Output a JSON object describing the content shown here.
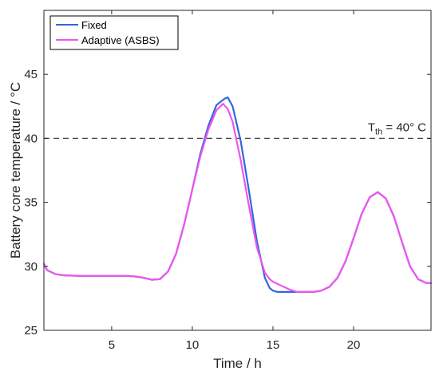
{
  "chart_data": {
    "type": "line",
    "title": "",
    "xlabel": "Time / h",
    "ylabel": "Battery core temperature / °C",
    "xlim": [
      0.8,
      24.8
    ],
    "ylim": [
      25,
      50
    ],
    "xticks": [
      5,
      10,
      15,
      20
    ],
    "yticks": [
      25,
      30,
      35,
      40,
      45
    ],
    "grid": false,
    "legend_position": "top-left",
    "threshold": {
      "value": 40,
      "label_main": "T",
      "label_sub": "th",
      "label_rest": " = 40° C"
    },
    "series": [
      {
        "name": "Fixed",
        "color": "#3366dd",
        "x": [
          0.8,
          1.0,
          1.5,
          2.0,
          3.0,
          4.0,
          5.0,
          6.0,
          6.5,
          7.0,
          7.5,
          8.0,
          8.5,
          9.0,
          9.5,
          10.0,
          10.5,
          11.0,
          11.5,
          12.0,
          12.2,
          12.5,
          13.0,
          13.5,
          14.0,
          14.5,
          14.8,
          15.0,
          15.3,
          15.5,
          16.0,
          17.0,
          17.5,
          18.0,
          18.5,
          19.0,
          19.5,
          20.0,
          20.5,
          21.0,
          21.5,
          22.0,
          22.5,
          23.0,
          23.5,
          24.0,
          24.5,
          24.8
        ],
        "y": [
          30.2,
          29.7,
          29.4,
          29.3,
          29.25,
          29.25,
          29.25,
          29.25,
          29.2,
          29.1,
          28.95,
          29.0,
          29.6,
          31.0,
          33.3,
          36.0,
          38.8,
          41.0,
          42.6,
          43.1,
          43.2,
          42.5,
          39.8,
          36.0,
          32.0,
          29.1,
          28.3,
          28.1,
          28.0,
          28.0,
          28.0,
          28.0,
          28.0,
          28.1,
          28.4,
          29.1,
          30.4,
          32.2,
          34.1,
          35.4,
          35.8,
          35.3,
          33.9,
          31.9,
          30.0,
          29.0,
          28.7,
          28.7
        ]
      },
      {
        "name": "Adaptive (ASBS)",
        "color": "#ee55ee",
        "x": [
          0.8,
          1.0,
          1.5,
          2.0,
          3.0,
          4.0,
          5.0,
          6.0,
          6.5,
          7.0,
          7.5,
          8.0,
          8.5,
          9.0,
          9.5,
          10.0,
          10.5,
          11.0,
          11.5,
          11.9,
          12.2,
          12.5,
          13.0,
          13.5,
          14.0,
          14.5,
          14.8,
          15.0,
          15.5,
          16.0,
          16.5,
          17.0,
          17.5,
          18.0,
          18.5,
          19.0,
          19.5,
          20.0,
          20.5,
          21.0,
          21.5,
          22.0,
          22.5,
          23.0,
          23.5,
          24.0,
          24.5,
          24.8
        ],
        "y": [
          30.2,
          29.7,
          29.4,
          29.3,
          29.25,
          29.25,
          29.25,
          29.25,
          29.2,
          29.1,
          28.95,
          29.0,
          29.6,
          31.0,
          33.3,
          36.0,
          38.6,
          40.7,
          42.2,
          42.7,
          42.3,
          41.3,
          38.3,
          34.8,
          31.5,
          29.5,
          29.0,
          28.8,
          28.5,
          28.2,
          28.0,
          28.0,
          28.0,
          28.1,
          28.4,
          29.1,
          30.4,
          32.2,
          34.1,
          35.4,
          35.8,
          35.3,
          33.9,
          31.9,
          30.0,
          29.0,
          28.7,
          28.7
        ]
      }
    ]
  }
}
